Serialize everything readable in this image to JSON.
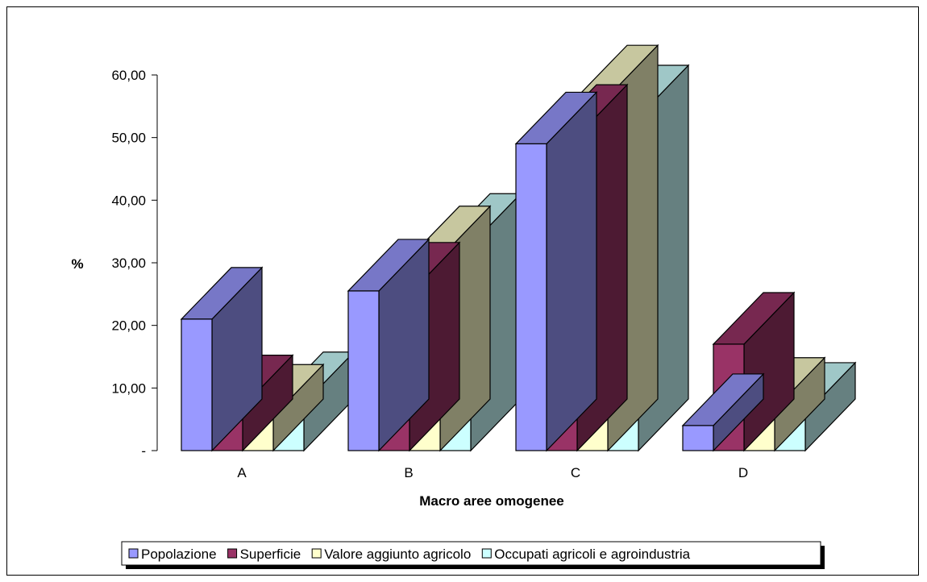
{
  "chart_data": {
    "type": "bar",
    "style": "3d-clustered-column",
    "title": "",
    "xlabel": "Macro aree omogenee",
    "ylabel": "%",
    "categories": [
      "A",
      "B",
      "C",
      "D"
    ],
    "series": [
      {
        "name": "Popolazione",
        "values": [
          21.0,
          25.5,
          49.0,
          4.0
        ],
        "color": "#9999ff"
      },
      {
        "name": "Superficie",
        "values": [
          7.0,
          25.0,
          50.2,
          17.0
        ],
        "color": "#993366"
      },
      {
        "name": "Valore aggiunto agricolo",
        "values": [
          5.5,
          30.8,
          56.5,
          6.6
        ],
        "color": "#ffffcc"
      },
      {
        "name": "Occupati agricoli e agroindustria",
        "values": [
          7.5,
          32.8,
          53.3,
          5.8
        ],
        "color": "#ccffff"
      }
    ],
    "ylim": [
      0,
      60
    ],
    "yticks": [
      0,
      10,
      20,
      30,
      40,
      50,
      60
    ],
    "ytick_labels": [
      "-",
      "10,00",
      "20,00",
      "30,00",
      "40,00",
      "50,00",
      "60,00"
    ],
    "grid": false,
    "legend_position": "bottom"
  }
}
